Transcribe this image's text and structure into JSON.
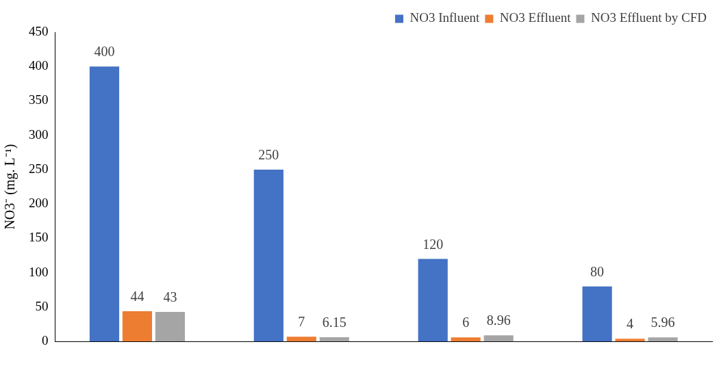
{
  "chart_data": {
    "type": "bar",
    "ylabel": "NO3⁻ (mg. L⁻¹)",
    "categories": [
      null,
      null,
      null,
      null
    ],
    "series": [
      {
        "name": "NO3 Influent",
        "color": "#4472c4",
        "values": [
          400,
          250,
          120,
          80
        ]
      },
      {
        "name": "NO3 Effluent",
        "color": "#ed7d31",
        "values": [
          44,
          7,
          6,
          4
        ]
      },
      {
        "name": "NO3 Effluent by CFD",
        "color": "#a5a5a5",
        "values": [
          43,
          6.15,
          8.96,
          5.96
        ]
      }
    ],
    "ylim": [
      0,
      450
    ],
    "yticks": [
      0,
      50,
      100,
      150,
      200,
      250,
      300,
      350,
      400,
      450
    ],
    "grid": false,
    "legend": "top right",
    "data_labels": true
  }
}
